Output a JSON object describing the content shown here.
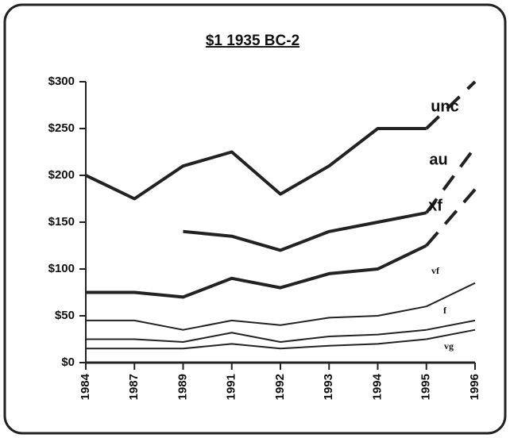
{
  "chart_data": {
    "type": "line",
    "title": "$1 1935 BC-2",
    "categories": [
      "1984",
      "1987",
      "1989",
      "1991",
      "1992",
      "1993",
      "1994",
      "1995",
      "1996"
    ],
    "series": [
      {
        "name": "unc",
        "color": "#222222",
        "values": [
          200,
          175,
          210,
          225,
          180,
          210,
          250,
          250,
          300
        ]
      },
      {
        "name": "au",
        "color": "#222222",
        "values": [
          null,
          null,
          140,
          135,
          120,
          140,
          150,
          160,
          230
        ]
      },
      {
        "name": "xf",
        "color": "#222222",
        "values": [
          75,
          75,
          70,
          90,
          80,
          95,
          100,
          125,
          185
        ]
      },
      {
        "name": "vf",
        "color": "#222222",
        "values": [
          45,
          45,
          35,
          45,
          40,
          48,
          50,
          60,
          85
        ]
      },
      {
        "name": "f",
        "color": "#222222",
        "values": [
          25,
          25,
          22,
          32,
          22,
          28,
          30,
          35,
          45
        ]
      },
      {
        "name": "vg",
        "color": "#222222",
        "values": [
          15,
          15,
          15,
          20,
          15,
          18,
          20,
          25,
          35
        ]
      }
    ],
    "ylim": [
      0,
      300
    ],
    "yticks": [
      {
        "value": 0,
        "label": "$0"
      },
      {
        "value": 50,
        "label": "$50"
      },
      {
        "value": 100,
        "label": "$100"
      },
      {
        "value": 150,
        "label": "$150"
      },
      {
        "value": 200,
        "label": "$200"
      },
      {
        "value": 250,
        "label": "$250"
      },
      {
        "value": 300,
        "label": "$300"
      }
    ],
    "grid": false,
    "dashed_last_segment": true
  }
}
